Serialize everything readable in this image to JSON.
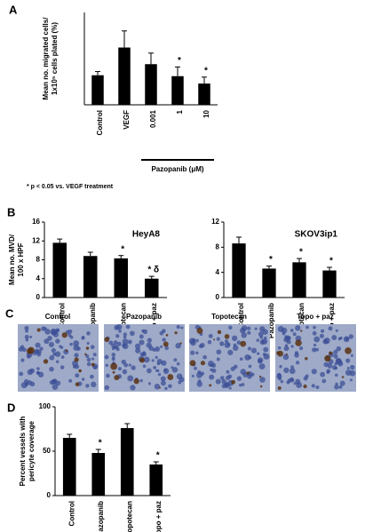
{
  "panel_labels": [
    "A",
    "B",
    "C",
    "D"
  ],
  "chart_data": [
    {
      "type": "bar",
      "y_label": [
        "Mean no. migrated cells/",
        "1x10⁵ cells plated (%)"
      ],
      "categories": [
        "Control",
        "VEGF",
        "0.001",
        "1",
        "10"
      ],
      "values": [
        3.2,
        6.2,
        4.4,
        3.1,
        2.3
      ],
      "errors": [
        0.4,
        1.8,
        1.2,
        1.0,
        0.7
      ],
      "annotations": [
        null,
        null,
        null,
        "*",
        "*"
      ],
      "color": "#000000",
      "ylim": [
        0,
        10
      ],
      "group_label": "Pazopanib (μM)",
      "footnote": "* p < 0.05 vs. VEGF treatment"
    },
    {
      "type": "bar",
      "title": "HeyA8",
      "y_label": [
        "Mean no. MVD/",
        "100 x HPF"
      ],
      "categories": [
        "Control",
        "Pazopanib",
        "Topotecan",
        "Topo + paz"
      ],
      "values": [
        11.6,
        8.8,
        8.3,
        4.0
      ],
      "errors": [
        0.8,
        0.8,
        0.6,
        0.5
      ],
      "annotations": [
        null,
        null,
        "*",
        "* δ"
      ],
      "color": "#000000",
      "ylim": [
        0,
        16
      ],
      "yticks": [
        0,
        4,
        8,
        12,
        16
      ]
    },
    {
      "type": "bar",
      "title": "SKOV3ip1",
      "categories": [
        "Control",
        "Pazopanib",
        "Topotecan",
        "Topo + paz"
      ],
      "values": [
        8.6,
        4.6,
        5.6,
        4.3
      ],
      "errors": [
        1.0,
        0.4,
        0.6,
        0.5
      ],
      "annotations": [
        null,
        "*",
        "*",
        "*"
      ],
      "color": "#000000",
      "ylim": [
        0,
        12
      ],
      "yticks": [
        0,
        4,
        8,
        12
      ]
    },
    {
      "type": "bar",
      "y_label": [
        "Percent vessels with",
        "pericyte coverage"
      ],
      "categories": [
        "Control",
        "Pazopanib",
        "Topotecan",
        "Topo + paz"
      ],
      "values": [
        65,
        48,
        76,
        35
      ],
      "errors": [
        4,
        4,
        5,
        3
      ],
      "annotations": [
        null,
        "*",
        null,
        "*"
      ],
      "color": "#000000",
      "ylim": [
        0,
        100
      ],
      "yticks": [
        0,
        50,
        100
      ]
    }
  ],
  "images": {
    "labels": [
      "Control",
      "Pazopanib",
      "Topotecan",
      "Topo + paz"
    ]
  }
}
